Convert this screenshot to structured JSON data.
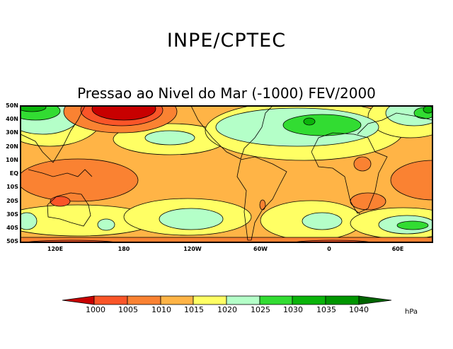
{
  "header": {
    "title": "INPE/CPTEC",
    "subtitle": "Pressao ao Nivel do Mar (-1000) FEV/2000"
  },
  "axes": {
    "lat_labels": [
      "50N",
      "40N",
      "30N",
      "20N",
      "10N",
      "EQ",
      "10S",
      "20S",
      "30S",
      "40S",
      "50S"
    ],
    "lon_labels": [
      "120E",
      "180",
      "120W",
      "60W",
      "0",
      "60E"
    ]
  },
  "legend": {
    "labels": [
      "1000",
      "1005",
      "1010",
      "1015",
      "1020",
      "1025",
      "1030",
      "1035",
      "1040"
    ],
    "unit": "hPa",
    "colors": [
      "#c80000",
      "#fa5528",
      "#fa8232",
      "#ffb446",
      "#ffff64",
      "#b4ffc8",
      "#32dc32",
      "#0ab40a",
      "#009600",
      "#006400"
    ]
  }
}
